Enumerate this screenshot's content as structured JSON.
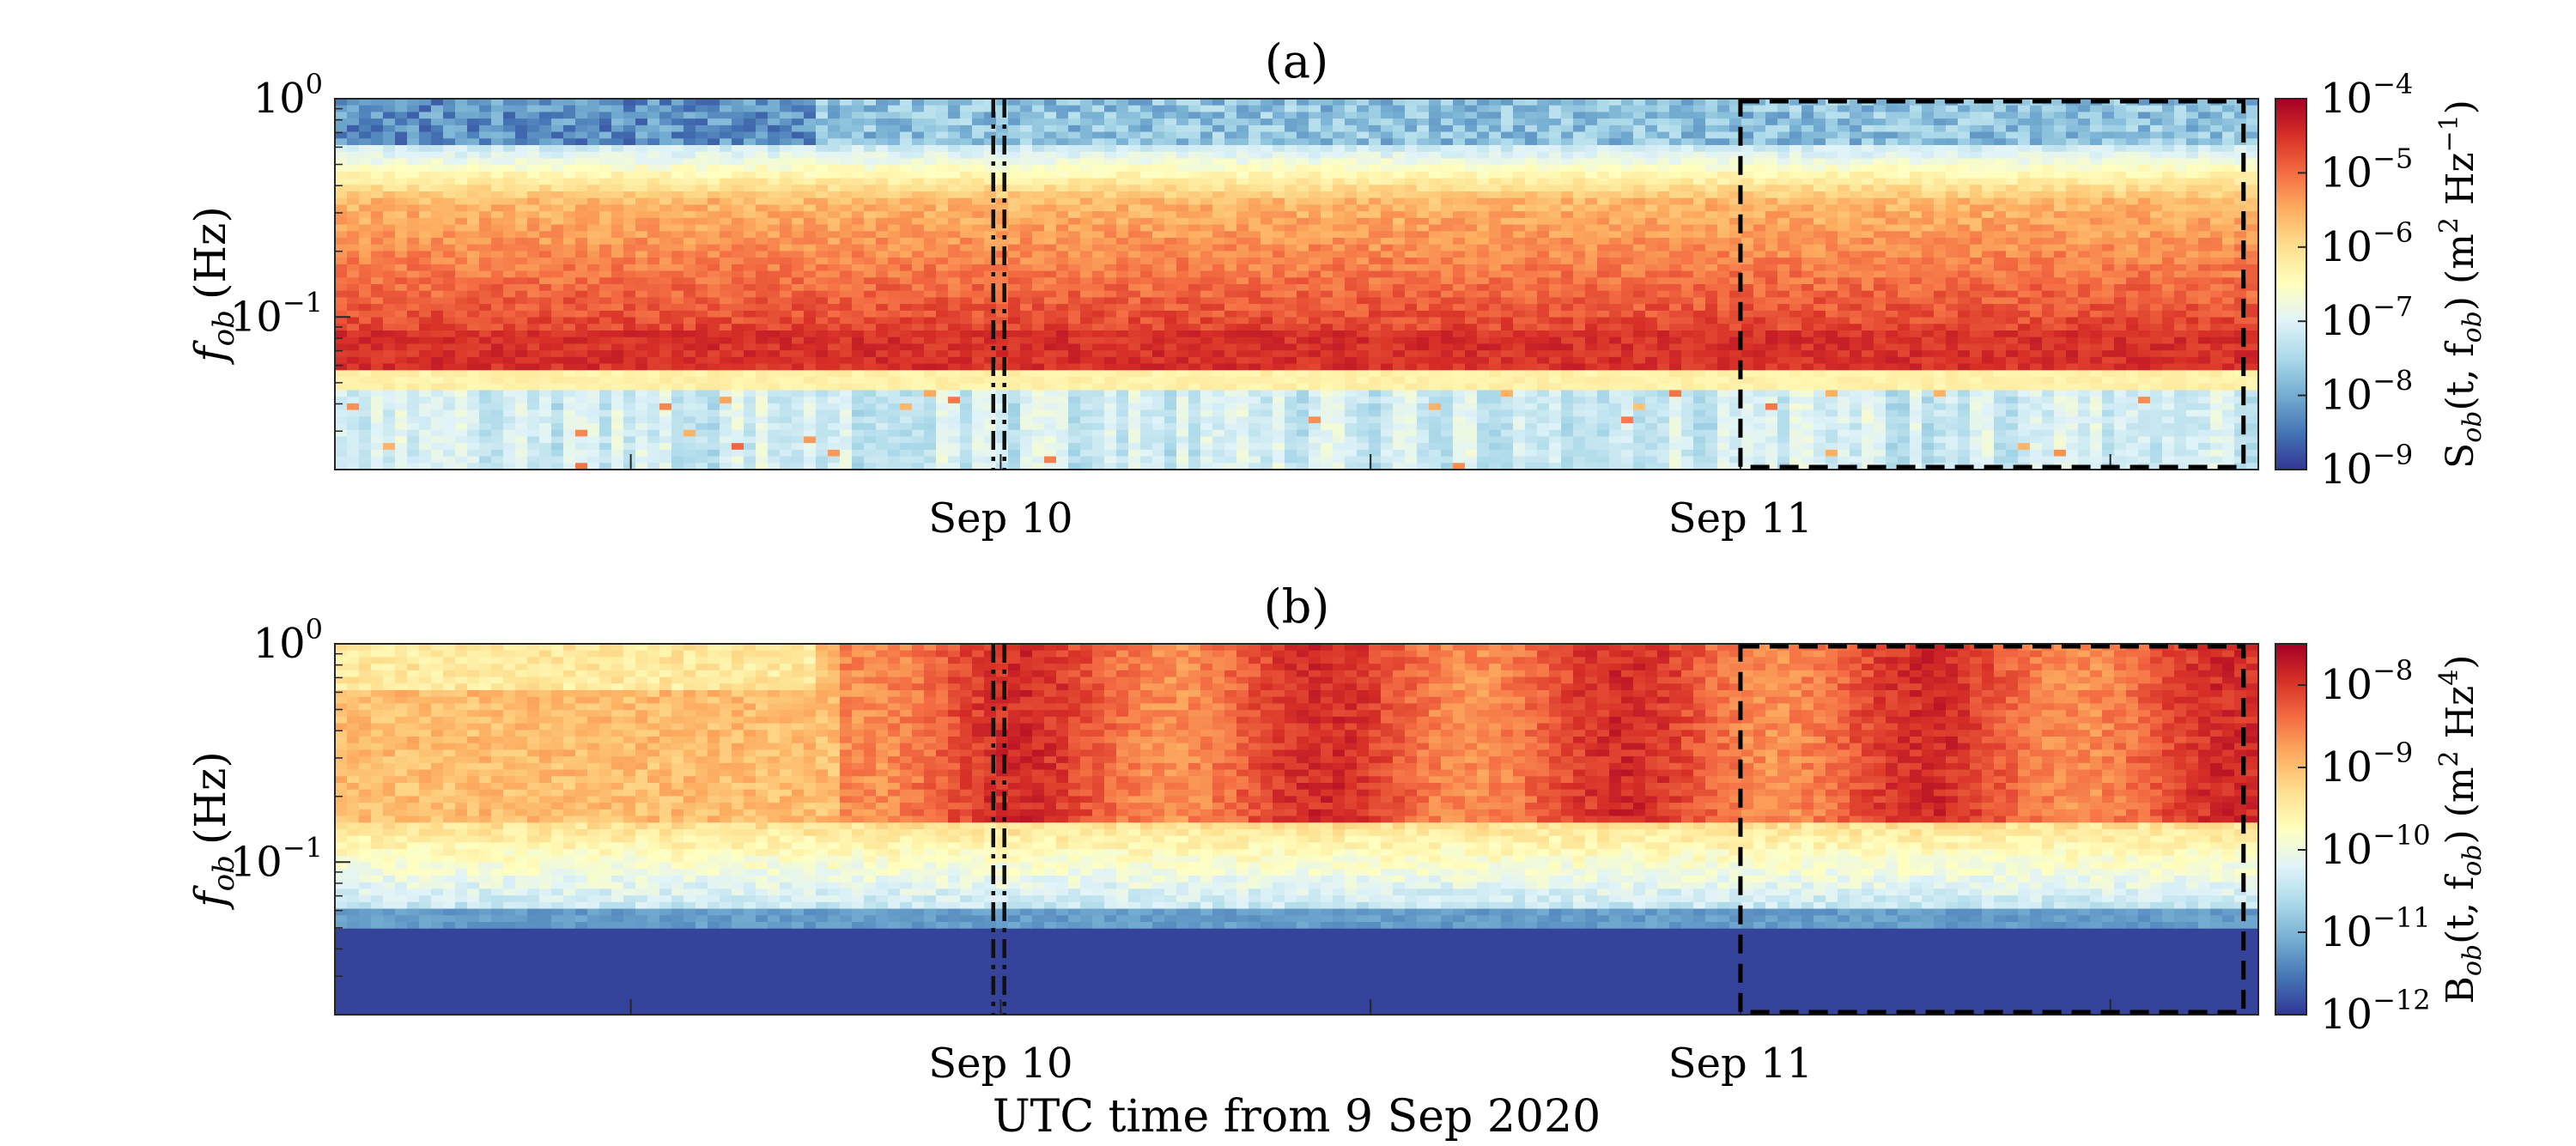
{
  "figure": {
    "xlabel": "UTC time from 9 Sep 2020"
  },
  "chart_data": [
    {
      "type": "heatmap",
      "title": "(a)",
      "ylabel_main": "f",
      "ylabel_sub": "ob",
      "ylabel_unit": "(Hz)",
      "y_scale": "log",
      "ylim": [
        0.02,
        1
      ],
      "y_ticks": [
        {
          "value": 1,
          "base": "10",
          "exp": "0"
        },
        {
          "value": 0.1,
          "base": "10",
          "exp": "−1"
        }
      ],
      "x_range_days": [
        0,
        2.6
      ],
      "x_ticks": [
        {
          "day": 0.4,
          "label": ""
        },
        {
          "day": 0.9,
          "label": "Sep 10"
        },
        {
          "day": 1.4,
          "label": ""
        },
        {
          "day": 1.9,
          "label": "Sep 11"
        },
        {
          "day": 2.4,
          "label": ""
        }
      ],
      "colorbar": {
        "label_parts": [
          "S",
          "ob",
          "(t, f",
          "ob",
          ") (m",
          "2",
          " Hz",
          "−1",
          ")"
        ],
        "scale": "log",
        "range_exp": [
          -9,
          -4
        ],
        "ticks": [
          {
            "base": "10",
            "exp": "−4"
          },
          {
            "base": "10",
            "exp": "−5"
          },
          {
            "base": "10",
            "exp": "−6"
          },
          {
            "base": "10",
            "exp": "−7"
          },
          {
            "base": "10",
            "exp": "−8"
          },
          {
            "base": "10",
            "exp": "−9"
          }
        ],
        "colormap": "RdYlBu_r"
      },
      "dashdot_lines_x_days": [
        0.89,
        0.905
      ],
      "dashed_box": {
        "x_days": [
          1.9,
          2.58
        ],
        "ylim": [
          0.02,
          1
        ]
      }
    },
    {
      "type": "heatmap",
      "title": "(b)",
      "ylabel_main": "f",
      "ylabel_sub": "ob",
      "ylabel_unit": "(Hz)",
      "y_scale": "log",
      "ylim": [
        0.02,
        1
      ],
      "y_ticks": [
        {
          "value": 1,
          "base": "10",
          "exp": "0"
        },
        {
          "value": 0.1,
          "base": "10",
          "exp": "−1"
        }
      ],
      "x_range_days": [
        0,
        2.6
      ],
      "x_ticks": [
        {
          "day": 0.4,
          "label": ""
        },
        {
          "day": 0.9,
          "label": "Sep 10"
        },
        {
          "day": 1.4,
          "label": ""
        },
        {
          "day": 1.9,
          "label": "Sep 11"
        },
        {
          "day": 2.4,
          "label": ""
        }
      ],
      "colorbar": {
        "label_parts": [
          "B",
          "ob",
          "(t, f",
          "ob",
          ") (m",
          "2",
          " Hz",
          "4",
          ")"
        ],
        "scale": "log",
        "range_exp": [
          -12,
          -7.5
        ],
        "ticks": [
          {
            "base": "10",
            "exp": "−8"
          },
          {
            "base": "10",
            "exp": "−9"
          },
          {
            "base": "10",
            "exp": "−10"
          },
          {
            "base": "10",
            "exp": "−11"
          },
          {
            "base": "10",
            "exp": "−12"
          }
        ],
        "colormap": "RdYlBu_r"
      },
      "dashdot_lines_x_days": [
        0.89,
        0.905
      ],
      "dashed_box": {
        "x_days": [
          1.9,
          2.58
        ],
        "ylim": [
          0.02,
          1
        ]
      }
    }
  ]
}
